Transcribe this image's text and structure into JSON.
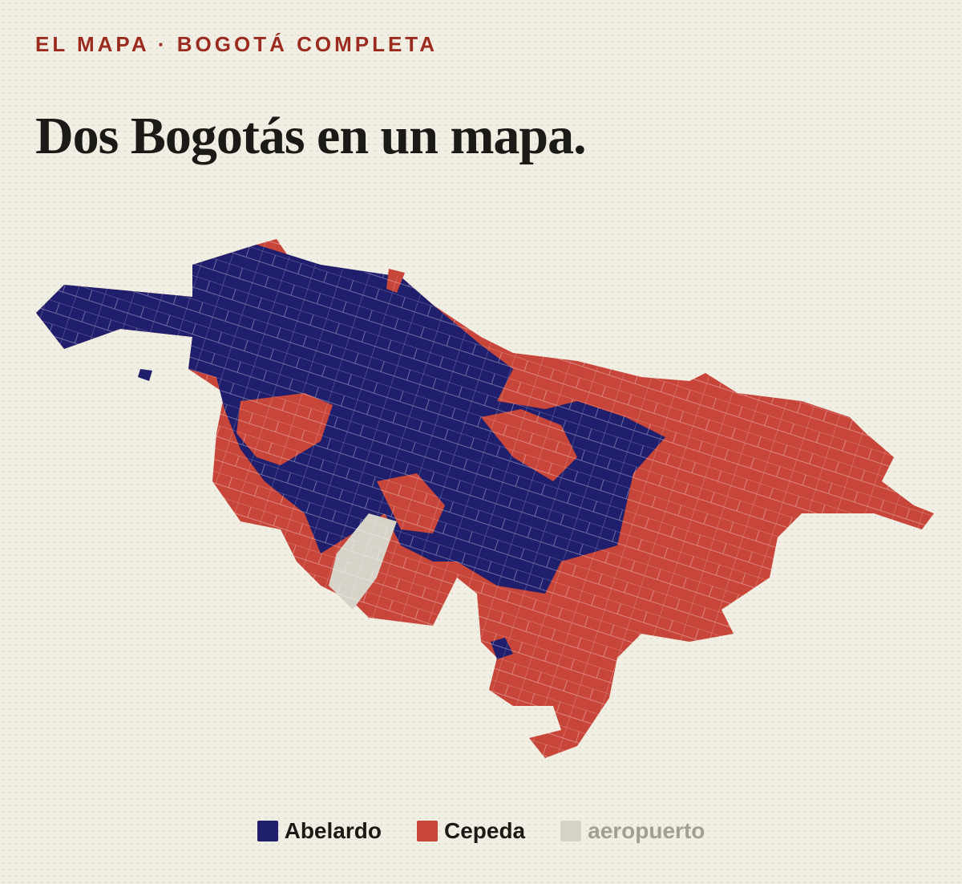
{
  "eyebrow": "EL MAPA · BOGOTÁ COMPLETA",
  "title": "Dos Bogotás en un mapa.",
  "legend": [
    {
      "label": "Abelardo",
      "color": "#1f1f6e"
    },
    {
      "label": "Cepeda",
      "color": "#c8453a"
    },
    {
      "label": "aeropuerto",
      "color": "#d8d3c8"
    }
  ]
}
